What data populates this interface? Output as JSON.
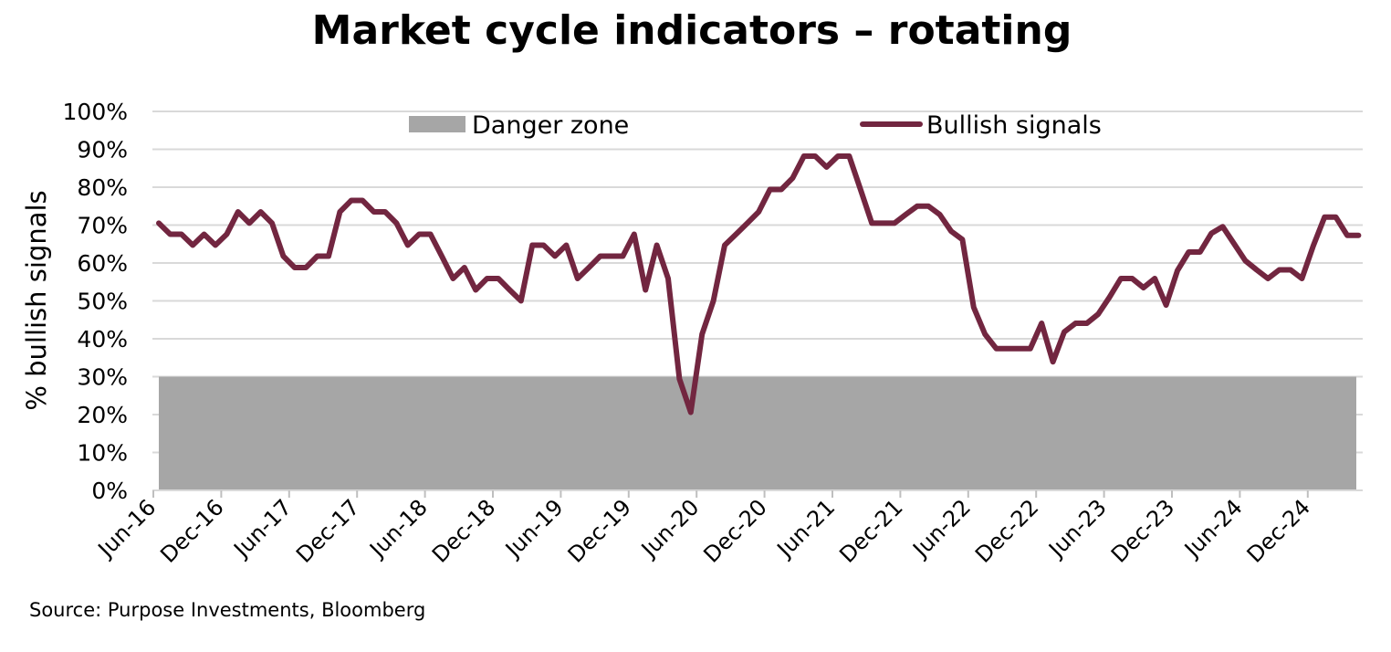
{
  "chart_data": {
    "type": "line",
    "title": "Market cycle indicators – rotating",
    "xlabel": "",
    "ylabel": "% bullish signals",
    "ylim": [
      0,
      100
    ],
    "yticks": [
      "0%",
      "10%",
      "20%",
      "30%",
      "40%",
      "50%",
      "60%",
      "70%",
      "80%",
      "90%",
      "100%"
    ],
    "xticks": [
      "Jun-16",
      "Dec-16",
      "Jun-17",
      "Dec-17",
      "Jun-18",
      "Dec-18",
      "Jun-19",
      "Dec-19",
      "Jun-20",
      "Dec-20",
      "Jun-21",
      "Dec-21",
      "Jun-22",
      "Dec-22",
      "Jun-23",
      "Dec-23",
      "Jun-24",
      "Dec-24"
    ],
    "grid": true,
    "legend": "top",
    "danger_zone": {
      "label": "Danger zone",
      "from": 0,
      "to": 30,
      "color": "#a6a6a6"
    },
    "series": [
      {
        "name": "Bullish signals",
        "color": "#722640",
        "start": "Jun-16",
        "frequency": "monthly",
        "values": [
          70.5,
          67.6,
          67.6,
          64.7,
          67.6,
          64.7,
          67.6,
          73.5,
          70.5,
          73.5,
          70.5,
          61.8,
          58.8,
          58.8,
          61.8,
          61.8,
          73.5,
          76.5,
          76.5,
          73.5,
          73.5,
          70.5,
          64.7,
          67.6,
          67.6,
          61.8,
          55.9,
          58.8,
          52.9,
          55.9,
          55.9,
          52.9,
          50.0,
          64.7,
          64.7,
          61.8,
          64.7,
          55.9,
          58.8,
          61.8,
          61.8,
          61.8,
          67.6,
          52.9,
          64.7,
          55.9,
          29.4,
          20.6,
          41.2,
          50.0,
          64.7,
          67.6,
          70.5,
          73.5,
          79.4,
          79.4,
          82.4,
          88.2,
          88.2,
          85.3,
          88.2,
          88.2,
          79.4,
          70.5,
          70.5,
          70.5,
          72.8,
          75.0,
          75.0,
          72.8,
          68.4,
          66.2,
          48.3,
          41.2,
          37.4,
          37.4,
          37.4,
          37.4,
          44.1,
          33.9,
          41.8,
          44.1,
          44.1,
          46.5,
          51.0,
          55.9,
          55.9,
          53.5,
          55.9,
          48.9,
          58.0,
          62.9,
          62.9,
          67.8,
          69.6,
          65.1,
          60.6,
          58.2,
          55.9,
          58.2,
          58.2,
          55.9,
          64.5,
          72.1,
          72.1,
          67.3,
          67.3
        ]
      }
    ]
  },
  "source": "Source: Purpose Investments, Bloomberg"
}
